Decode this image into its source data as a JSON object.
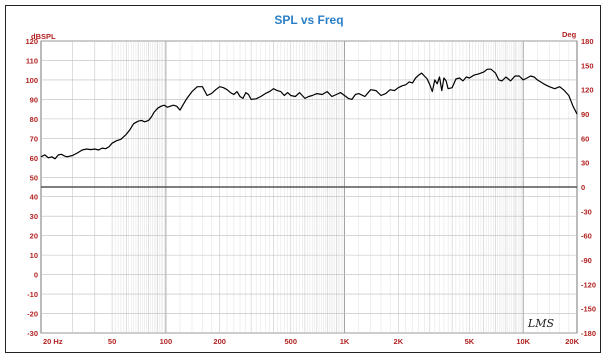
{
  "chart_data": {
    "type": "line",
    "title": "SPL vs Freq",
    "left_axis_unit": "dBSPL",
    "right_axis_unit": "Deg",
    "x_scale": "log",
    "xlim": [
      20,
      20000
    ],
    "ylim": [
      -30,
      120
    ],
    "right_ylim": [
      -180,
      180
    ],
    "x_ticks": [
      {
        "value": 20,
        "label": "20  Hz"
      },
      {
        "value": 50,
        "label": "50"
      },
      {
        "value": 100,
        "label": "100"
      },
      {
        "value": 200,
        "label": "200"
      },
      {
        "value": 500,
        "label": "500"
      },
      {
        "value": 1000,
        "label": "1K"
      },
      {
        "value": 2000,
        "label": "2K"
      },
      {
        "value": 5000,
        "label": "5K"
      },
      {
        "value": 10000,
        "label": "10K"
      },
      {
        "value": 20000,
        "label": "20K"
      }
    ],
    "y_ticks": [
      120,
      110,
      100,
      90,
      80,
      70,
      60,
      50,
      40,
      30,
      20,
      10,
      0,
      -10,
      -20,
      -30
    ],
    "right_ticks": [
      180,
      150,
      120,
      90,
      60,
      30,
      0,
      -30,
      -60,
      -90,
      -120,
      -150,
      -180
    ],
    "grid": true,
    "series": [
      {
        "color": "#000000",
        "x": [
          20,
          21,
          22,
          23,
          24,
          25,
          26,
          27,
          28,
          30,
          32,
          34,
          36,
          38,
          40,
          42,
          44,
          46,
          48,
          50,
          53,
          56,
          60,
          63,
          66,
          70,
          73,
          76,
          80,
          83,
          86,
          90,
          94,
          98,
          102,
          106,
          110,
          115,
          120,
          130,
          140,
          150,
          160,
          170,
          180,
          190,
          200,
          210,
          220,
          230,
          240,
          250,
          260,
          270,
          280,
          290,
          300,
          320,
          340,
          360,
          380,
          400,
          420,
          440,
          460,
          480,
          500,
          530,
          560,
          600,
          630,
          660,
          700,
          750,
          800,
          850,
          900,
          950,
          1000,
          1050,
          1100,
          1150,
          1200,
          1300,
          1400,
          1500,
          1600,
          1700,
          1800,
          1900,
          2000,
          2100,
          2200,
          2300,
          2400,
          2500,
          2600,
          2700,
          2800,
          2900,
          3000,
          3100,
          3200,
          3300,
          3400,
          3500,
          3600,
          3700,
          3800,
          4000,
          4200,
          4400,
          4600,
          4800,
          5000,
          5300,
          5600,
          6000,
          6300,
          6600,
          7000,
          7300,
          7600,
          8000,
          8500,
          9000,
          9500,
          10000,
          10500,
          11000,
          11500,
          12000,
          13000,
          14000,
          15000,
          16000,
          17000,
          18000,
          19000,
          20000
        ],
        "y": [
          60.5,
          61.5,
          60,
          60.5,
          59.5,
          61.5,
          61.8,
          61,
          60.5,
          61.2,
          62.5,
          64,
          64.5,
          64.2,
          64.5,
          64,
          65,
          64.7,
          65.6,
          67.5,
          68.8,
          69.5,
          72,
          74.5,
          77.5,
          78.8,
          79.2,
          78.5,
          79.2,
          81,
          83.5,
          85.5,
          86.5,
          87,
          86,
          86.5,
          87,
          86.5,
          84.5,
          90,
          94,
          96.5,
          96.5,
          92,
          93,
          95,
          96.5,
          96,
          95,
          93.5,
          92.5,
          94,
          91.5,
          90.5,
          93.5,
          92.5,
          90,
          90.3,
          91.5,
          93,
          94,
          95.5,
          94.5,
          94,
          92,
          93.5,
          92,
          91.5,
          93.5,
          90.5,
          91.5,
          92,
          93,
          92.5,
          94,
          91.5,
          92.5,
          93.5,
          92,
          90.5,
          90,
          92.5,
          93,
          91.5,
          95,
          94.5,
          92,
          93,
          95,
          94.5,
          96,
          97,
          97.5,
          99,
          98.5,
          101,
          102.5,
          103.5,
          102,
          100.5,
          97.5,
          94,
          100,
          98,
          101.5,
          94.5,
          101,
          99.5,
          95.5,
          96,
          100.5,
          101,
          99.5,
          101.5,
          101,
          102.5,
          103,
          104,
          105.5,
          105.5,
          103.5,
          100,
          99.5,
          101.5,
          99.5,
          102,
          102,
          100,
          101,
          102,
          101.5,
          100,
          98,
          96.5,
          95.5,
          96.5,
          94.5,
          92,
          86.5,
          82.5
        ]
      }
    ]
  },
  "signature": "LMS"
}
